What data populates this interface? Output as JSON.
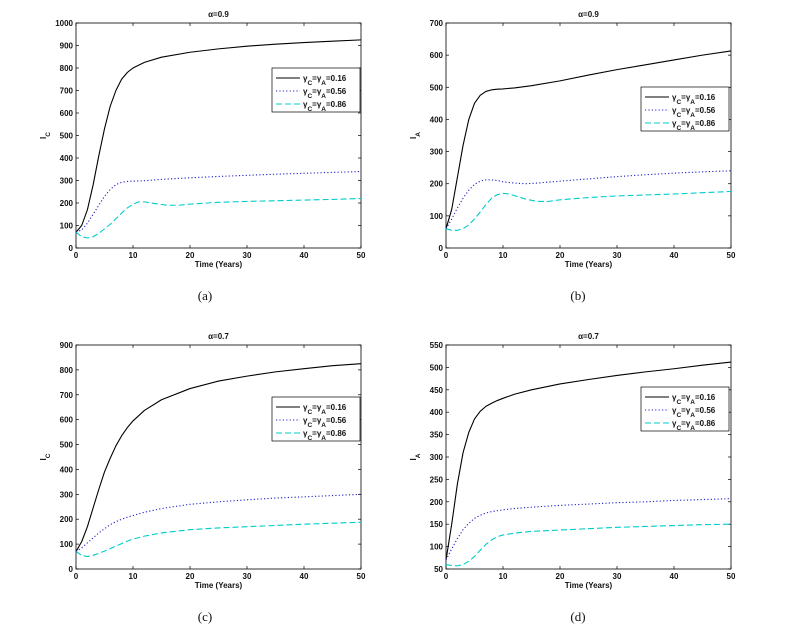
{
  "chart_data": [
    {
      "type": "line",
      "caption": "(a)",
      "title": "α=0.9",
      "xlabel": "Time (Years)",
      "ylabel": "I",
      "ylabel_sub": "C",
      "xlim": [
        0,
        50
      ],
      "ylim": [
        0,
        1000
      ],
      "xticks": [
        "0",
        "10",
        "20",
        "30",
        "40",
        "50"
      ],
      "yticks": [
        "0",
        "100",
        "200",
        "300",
        "400",
        "500",
        "600",
        "700",
        "800",
        "900",
        "1000"
      ],
      "legend_position": "top-right",
      "series": [
        {
          "name": "γC=γA=0.16",
          "name_parts": [
            "γ",
            "C",
            "=γ",
            "A",
            "=0.16"
          ],
          "color": "#000000",
          "dash": "solid",
          "x": [
            0,
            1,
            2,
            3,
            4,
            5,
            6,
            7,
            8,
            9,
            10,
            12,
            15,
            20,
            25,
            30,
            35,
            40,
            45,
            50
          ],
          "y": [
            70,
            100,
            170,
            280,
            410,
            530,
            630,
            700,
            750,
            780,
            800,
            825,
            848,
            870,
            885,
            897,
            906,
            913,
            919,
            925
          ]
        },
        {
          "name": "γC=γA=0.56",
          "name_parts": [
            "γ",
            "C",
            "=γ",
            "A",
            "=0.56"
          ],
          "color": "#2222cc",
          "dash": "dotted",
          "x": [
            0,
            1,
            2,
            3,
            4,
            5,
            6,
            7,
            8,
            9,
            10,
            12,
            15,
            20,
            25,
            30,
            35,
            40,
            45,
            50
          ],
          "y": [
            70,
            80,
            110,
            150,
            190,
            230,
            260,
            282,
            292,
            296,
            297,
            299,
            305,
            312,
            318,
            323,
            328,
            332,
            336,
            340
          ]
        },
        {
          "name": "γC=γA=0.86",
          "name_parts": [
            "γ",
            "C",
            "=γ",
            "A",
            "=0.86"
          ],
          "color": "#00cccc",
          "dash": "dashed",
          "x": [
            0,
            1,
            2,
            3,
            4,
            5,
            6,
            7,
            8,
            9,
            10,
            11,
            12,
            14,
            16,
            18,
            20,
            25,
            30,
            35,
            40,
            45,
            50
          ],
          "y": [
            70,
            50,
            45,
            50,
            65,
            85,
            105,
            130,
            155,
            178,
            195,
            205,
            205,
            197,
            190,
            190,
            195,
            203,
            207,
            210,
            213,
            216,
            220
          ]
        }
      ]
    },
    {
      "type": "line",
      "caption": "(b)",
      "title": "α=0.9",
      "xlabel": "Time (Years)",
      "ylabel": "I",
      "ylabel_sub": "A",
      "xlim": [
        0,
        50
      ],
      "ylim": [
        0,
        700
      ],
      "xticks": [
        "0",
        "10",
        "20",
        "30",
        "40",
        "50"
      ],
      "yticks": [
        "0",
        "100",
        "200",
        "300",
        "400",
        "500",
        "600",
        "700"
      ],
      "legend_position": "right",
      "series": [
        {
          "name": "γC=γA=0.16",
          "name_parts": [
            "γ",
            "C",
            "=γ",
            "A",
            "=0.16"
          ],
          "color": "#000000",
          "dash": "solid",
          "x": [
            0,
            1,
            2,
            3,
            4,
            5,
            6,
            7,
            8,
            9,
            10,
            12,
            15,
            20,
            25,
            30,
            35,
            40,
            45,
            50
          ],
          "y": [
            60,
            120,
            220,
            320,
            400,
            450,
            475,
            487,
            492,
            494,
            495,
            498,
            505,
            520,
            538,
            555,
            570,
            585,
            600,
            613
          ]
        },
        {
          "name": "γC=γA=0.56",
          "name_parts": [
            "γ",
            "C",
            "=γ",
            "A",
            "=0.56"
          ],
          "color": "#2222cc",
          "dash": "dotted",
          "x": [
            0,
            1,
            2,
            3,
            4,
            5,
            6,
            7,
            8,
            9,
            10,
            12,
            14,
            16,
            18,
            20,
            25,
            30,
            35,
            40,
            45,
            50
          ],
          "y": [
            60,
            90,
            125,
            155,
            180,
            198,
            208,
            212,
            212,
            210,
            206,
            202,
            200,
            202,
            205,
            208,
            215,
            222,
            228,
            233,
            237,
            240
          ]
        },
        {
          "name": "γC=γA=0.86",
          "name_parts": [
            "γ",
            "C",
            "=γ",
            "A",
            "=0.86"
          ],
          "color": "#00cccc",
          "dash": "dashed",
          "x": [
            0,
            1,
            2,
            3,
            4,
            5,
            6,
            7,
            8,
            9,
            10,
            11,
            12,
            14,
            16,
            18,
            20,
            25,
            30,
            35,
            40,
            45,
            50
          ],
          "y": [
            60,
            55,
            55,
            60,
            72,
            90,
            112,
            135,
            155,
            166,
            170,
            168,
            163,
            152,
            145,
            145,
            150,
            157,
            162,
            165,
            168,
            172,
            176
          ]
        }
      ]
    },
    {
      "type": "line",
      "caption": "(c)",
      "title": "α=0.7",
      "xlabel": "Time (Years)",
      "ylabel": "I",
      "ylabel_sub": "C",
      "xlim": [
        0,
        50
      ],
      "ylim": [
        0,
        900
      ],
      "xticks": [
        "0",
        "10",
        "20",
        "30",
        "40",
        "50"
      ],
      "yticks": [
        "0",
        "100",
        "200",
        "300",
        "400",
        "500",
        "600",
        "700",
        "800",
        "900"
      ],
      "legend_position": "right",
      "series": [
        {
          "name": "γC=γA=0.16",
          "name_parts": [
            "γ",
            "C",
            "=γ",
            "A",
            "=0.16"
          ],
          "color": "#000000",
          "dash": "solid",
          "x": [
            0,
            1,
            2,
            3,
            4,
            5,
            6,
            7,
            8,
            9,
            10,
            12,
            15,
            20,
            25,
            30,
            35,
            40,
            45,
            50
          ],
          "y": [
            70,
            110,
            170,
            245,
            320,
            390,
            445,
            495,
            535,
            568,
            595,
            637,
            680,
            725,
            755,
            775,
            792,
            805,
            817,
            825
          ]
        },
        {
          "name": "γC=γA=0.56",
          "name_parts": [
            "γ",
            "C",
            "=γ",
            "A",
            "=0.56"
          ],
          "color": "#2222cc",
          "dash": "dotted",
          "x": [
            0,
            1,
            2,
            3,
            4,
            5,
            6,
            7,
            8,
            9,
            10,
            12,
            15,
            20,
            25,
            30,
            35,
            40,
            45,
            50
          ],
          "y": [
            70,
            85,
            105,
            125,
            145,
            162,
            178,
            190,
            200,
            208,
            215,
            228,
            243,
            260,
            270,
            278,
            285,
            290,
            295,
            300
          ]
        },
        {
          "name": "γC=γA=0.86",
          "name_parts": [
            "γ",
            "C",
            "=γ",
            "A",
            "=0.86"
          ],
          "color": "#00cccc",
          "dash": "dashed",
          "x": [
            0,
            1,
            2,
            3,
            4,
            5,
            6,
            7,
            8,
            9,
            10,
            12,
            15,
            20,
            25,
            30,
            35,
            40,
            45,
            50
          ],
          "y": [
            70,
            55,
            50,
            55,
            63,
            72,
            82,
            92,
            102,
            112,
            120,
            132,
            145,
            158,
            165,
            170,
            175,
            180,
            184,
            188
          ]
        }
      ]
    },
    {
      "type": "line",
      "caption": "(d)",
      "title": "α=0.7",
      "xlabel": "Time (Years)",
      "ylabel": "I",
      "ylabel_sub": "A",
      "xlim": [
        0,
        50
      ],
      "ylim": [
        50,
        550
      ],
      "xticks": [
        "0",
        "10",
        "20",
        "30",
        "40",
        "50"
      ],
      "yticks": [
        "50",
        "100",
        "150",
        "200",
        "250",
        "300",
        "350",
        "400",
        "450",
        "500",
        "550"
      ],
      "legend_position": "right",
      "series": [
        {
          "name": "γC=γA=0.16",
          "name_parts": [
            "γ",
            "C",
            "=γ",
            "A",
            "=0.16"
          ],
          "color": "#000000",
          "dash": "solid",
          "x": [
            0,
            1,
            2,
            3,
            4,
            5,
            6,
            7,
            8,
            9,
            10,
            12,
            15,
            20,
            25,
            30,
            35,
            40,
            45,
            50
          ],
          "y": [
            70,
            150,
            240,
            310,
            355,
            385,
            402,
            413,
            420,
            426,
            431,
            440,
            450,
            463,
            473,
            482,
            490,
            497,
            505,
            512
          ]
        },
        {
          "name": "γC=γA=0.56",
          "name_parts": [
            "γ",
            "C",
            "=γ",
            "A",
            "=0.56"
          ],
          "color": "#2222cc",
          "dash": "dotted",
          "x": [
            0,
            1,
            2,
            3,
            4,
            5,
            6,
            7,
            8,
            9,
            10,
            12,
            15,
            20,
            25,
            30,
            35,
            40,
            45,
            50
          ],
          "y": [
            70,
            95,
            118,
            138,
            152,
            163,
            170,
            175,
            178,
            180,
            182,
            185,
            188,
            192,
            195,
            198,
            200,
            203,
            205,
            207
          ]
        },
        {
          "name": "γC=γA=0.86",
          "name_parts": [
            "γ",
            "C",
            "=γ",
            "A",
            "=0.86"
          ],
          "color": "#00cccc",
          "dash": "dashed",
          "x": [
            0,
            1,
            2,
            3,
            4,
            5,
            6,
            7,
            8,
            9,
            10,
            12,
            15,
            20,
            25,
            30,
            35,
            40,
            45,
            50
          ],
          "y": [
            60,
            58,
            57,
            60,
            67,
            78,
            92,
            105,
            115,
            122,
            126,
            130,
            134,
            137,
            140,
            143,
            145,
            147,
            149,
            150
          ]
        }
      ]
    }
  ]
}
